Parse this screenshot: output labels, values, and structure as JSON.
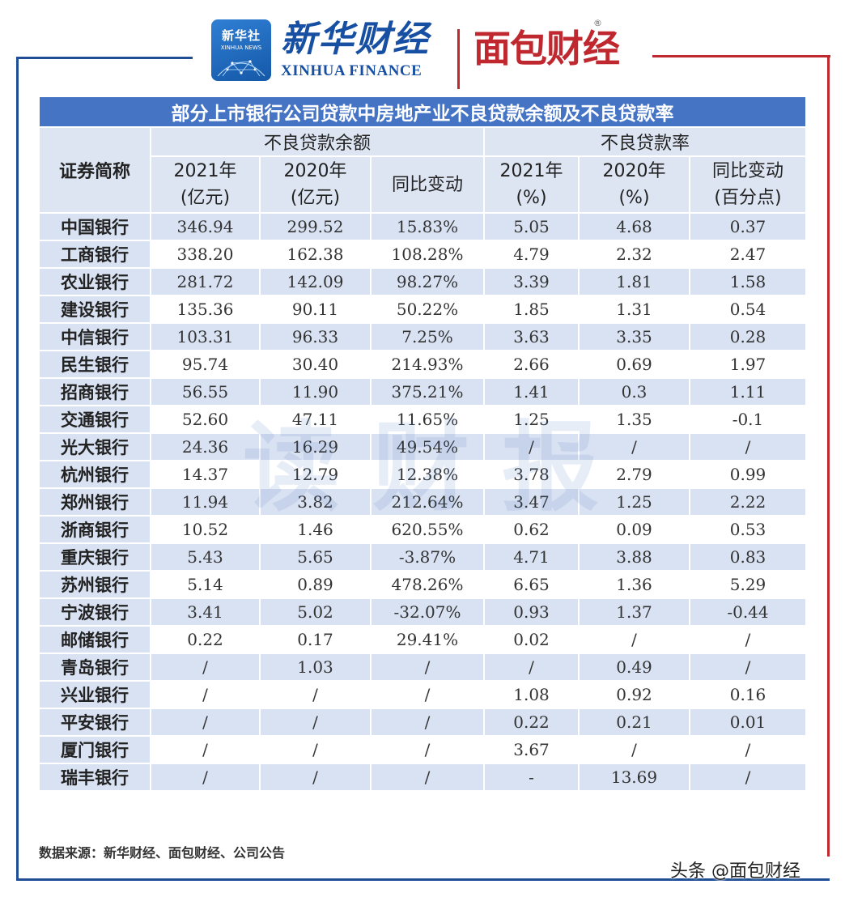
{
  "header": {
    "xinhua_badge_cn": "新华社",
    "xinhua_badge_en": "XINHUA NEWS",
    "xinhua_finance_cn": "新华财经",
    "xinhua_finance_en": "XINHUA FINANCE",
    "mianbao_logo": "面包财经",
    "registered_mark": "®"
  },
  "table": {
    "title": "部分上市银行公司贷款中房地产业不良贷款余额及不良贷款率",
    "stub_header": "证券简称",
    "group_headers": [
      "不良贷款余额",
      "不良贷款率"
    ],
    "sub_headers": [
      [
        "2021年",
        "(亿元)"
      ],
      [
        "2020年",
        "(亿元)"
      ],
      [
        "同比变动",
        ""
      ],
      [
        "2021年",
        "(%)"
      ],
      [
        "2020年",
        "(%)"
      ],
      [
        "同比变动",
        "(百分点)"
      ]
    ],
    "rows": [
      [
        "中国银行",
        "346.94",
        "299.52",
        "15.83%",
        "5.05",
        "4.68",
        "0.37"
      ],
      [
        "工商银行",
        "338.20",
        "162.38",
        "108.28%",
        "4.79",
        "2.32",
        "2.47"
      ],
      [
        "农业银行",
        "281.72",
        "142.09",
        "98.27%",
        "3.39",
        "1.81",
        "1.58"
      ],
      [
        "建设银行",
        "135.36",
        "90.11",
        "50.22%",
        "1.85",
        "1.31",
        "0.54"
      ],
      [
        "中信银行",
        "103.31",
        "96.33",
        "7.25%",
        "3.63",
        "3.35",
        "0.28"
      ],
      [
        "民生银行",
        "95.74",
        "30.40",
        "214.93%",
        "2.66",
        "0.69",
        "1.97"
      ],
      [
        "招商银行",
        "56.55",
        "11.90",
        "375.21%",
        "1.41",
        "0.3",
        "1.11"
      ],
      [
        "交通银行",
        "52.60",
        "47.11",
        "11.65%",
        "1.25",
        "1.35",
        "-0.1"
      ],
      [
        "光大银行",
        "24.36",
        "16.29",
        "49.54%",
        "/",
        "/",
        "/"
      ],
      [
        "杭州银行",
        "14.37",
        "12.79",
        "12.38%",
        "3.78",
        "2.79",
        "0.99"
      ],
      [
        "郑州银行",
        "11.94",
        "3.82",
        "212.64%",
        "3.47",
        "1.25",
        "2.22"
      ],
      [
        "浙商银行",
        "10.52",
        "1.46",
        "620.55%",
        "0.62",
        "0.09",
        "0.53"
      ],
      [
        "重庆银行",
        "5.43",
        "5.65",
        "-3.87%",
        "4.71",
        "3.88",
        "0.83"
      ],
      [
        "苏州银行",
        "5.14",
        "0.89",
        "478.26%",
        "6.65",
        "1.36",
        "5.29"
      ],
      [
        "宁波银行",
        "3.41",
        "5.02",
        "-32.07%",
        "0.93",
        "1.37",
        "-0.44"
      ],
      [
        "邮储银行",
        "0.22",
        "0.17",
        "29.41%",
        "0.02",
        "/",
        "/"
      ],
      [
        "青岛银行",
        "/",
        "1.03",
        "/",
        "/",
        "0.49",
        "/"
      ],
      [
        "兴业银行",
        "/",
        "/",
        "/",
        "1.08",
        "0.92",
        "0.16"
      ],
      [
        "平安银行",
        "/",
        "/",
        "/",
        "0.22",
        "0.21",
        "0.01"
      ],
      [
        "厦门银行",
        "/",
        "/",
        "/",
        "3.67",
        "/",
        "/"
      ],
      [
        "瑞丰银行",
        "/",
        "/",
        "/",
        "-",
        "13.69",
        "/"
      ]
    ]
  },
  "watermark": "读财报",
  "source_note": "数据来源：新华财经、面包财经、公司公告",
  "credit": "头条 @面包财经",
  "colors": {
    "title_bar": "#4674c4",
    "header_fill": "#dde5f3",
    "row_band": "#d9e2f2",
    "frame_blue": "#1f4e96",
    "frame_red": "#c0282f"
  }
}
